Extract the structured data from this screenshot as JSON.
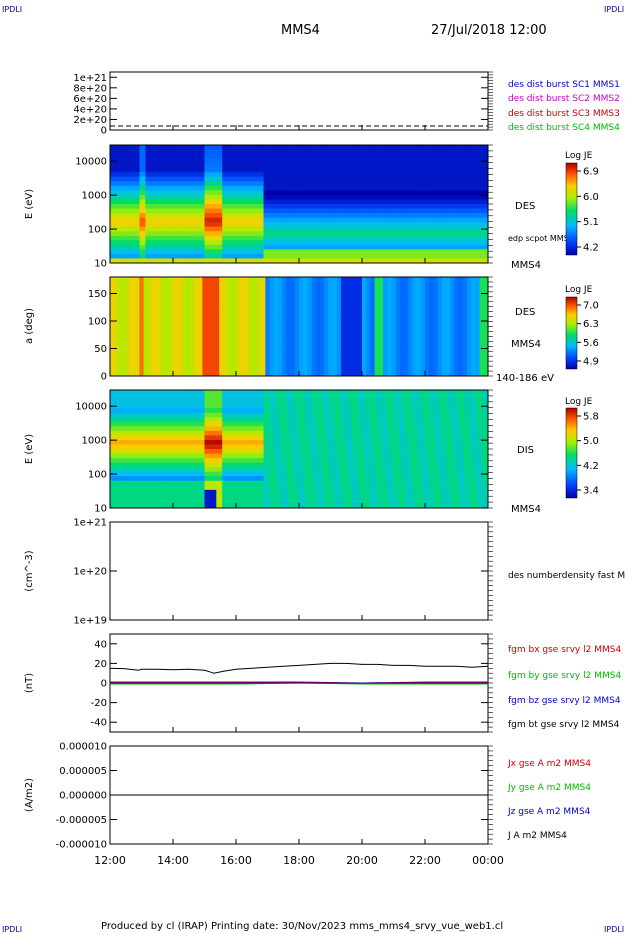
{
  "header": {
    "corner_tl": "IPDLI",
    "corner_tr": "IPDLI",
    "corner_bl": "IPDLI",
    "corner_br": "IPDLI",
    "title": "MMS4",
    "datetime": "27/Jul/2018 12:00"
  },
  "footer": {
    "produced": "Produced by cl (IRAP)   Printing date: 30/Nov/2023   mms_mms4_srvy_vue_web1.cl"
  },
  "colors": {
    "blue": "#0000cc",
    "magenta": "#cc00cc",
    "red": "#cc0000",
    "green": "#00bb00",
    "black": "#000000"
  },
  "chart_data": {
    "type": "multi-panel",
    "x_ticks": [
      "12:00",
      "14:00",
      "16:00",
      "18:00",
      "20:00",
      "22:00",
      "00:00"
    ],
    "panels": [
      {
        "id": "p1",
        "type": "line",
        "ylabel": "",
        "yticks": [
          "1e+21",
          "8e+20",
          "6e+20",
          "4e+20",
          "2e+20",
          "0"
        ],
        "yvals": [
          1e+21,
          8e+20,
          6e+20,
          4e+20,
          2e+20,
          0
        ],
        "ylim": [
          0,
          1.1e+21
        ],
        "legend": [
          {
            "label": "des dist burst SC1 MMS1",
            "color": "#0000cc"
          },
          {
            "label": "des dist burst SC2 MMS2",
            "color": "#cc00cc"
          },
          {
            "label": "des dist burst SC3 MMS3",
            "color": "#cc0000"
          },
          {
            "label": "des dist burst SC4 MMS4",
            "color": "#00bb00"
          }
        ]
      },
      {
        "id": "p2",
        "type": "heatmap",
        "ylabel": "E (eV)",
        "yticks": [
          "10000",
          "1000",
          "100",
          "10"
        ],
        "yvals": [
          10000,
          1000,
          100,
          10
        ],
        "yscale": "log",
        "ylim": [
          10,
          30000
        ],
        "right_labels": [
          "DES",
          "edp scpot MMS4",
          "MMS4"
        ],
        "colorbar": {
          "title": "Log JE",
          "ticks": [
            "6.9",
            "6.0",
            "5.1",
            "4.2"
          ],
          "range": [
            4.2,
            6.9
          ]
        }
      },
      {
        "id": "p3",
        "type": "heatmap",
        "ylabel": "a (deg)",
        "yticks": [
          "150",
          "100",
          "50",
          "0"
        ],
        "yvals": [
          150,
          100,
          50,
          0
        ],
        "ylim": [
          0,
          180
        ],
        "right_labels": [
          "DES",
          "MMS4",
          "140-186 eV"
        ],
        "colorbar": {
          "title": "Log JE",
          "ticks": [
            "7.0",
            "6.3",
            "5.6",
            "4.9"
          ],
          "range": [
            4.9,
            7.0
          ]
        }
      },
      {
        "id": "p4",
        "type": "heatmap",
        "ylabel": "E (eV)",
        "yticks": [
          "10000",
          "1000",
          "100",
          "10"
        ],
        "yvals": [
          10000,
          1000,
          100,
          10
        ],
        "yscale": "log",
        "ylim": [
          10,
          30000
        ],
        "right_labels": [
          "DIS",
          "MMS4"
        ],
        "colorbar": {
          "title": "Log JE",
          "ticks": [
            "5.8",
            "5.0",
            "4.2",
            "3.4"
          ],
          "range": [
            3.4,
            5.8
          ]
        }
      },
      {
        "id": "p5",
        "type": "line",
        "ylabel": "(cm^-3)",
        "yticks": [
          "1e+21",
          "1e+20",
          "1e+19"
        ],
        "yscale": "log",
        "right_labels": [
          "des numberdensity fast M"
        ]
      },
      {
        "id": "p6",
        "type": "line",
        "ylabel": "(nT)",
        "yticks": [
          "40",
          "20",
          "0",
          "-20",
          "-40"
        ],
        "yvals": [
          40,
          20,
          0,
          -20,
          -40
        ],
        "ylim": [
          -50,
          50
        ],
        "legend": [
          {
            "label": "fgm bx gse srvy l2 MMS4",
            "color": "#cc0000"
          },
          {
            "label": "fgm by gse srvy l2 MMS4",
            "color": "#00bb00"
          },
          {
            "label": "fgm bz gse srvy l2 MMS4",
            "color": "#0000cc"
          },
          {
            "label": "fgm bt gse srvy l2 MMS4",
            "color": "#000000"
          }
        ],
        "series": [
          {
            "name": "fgm bt gse srvy l2 MMS4",
            "x": [
              12.0,
              12.5,
              12.9,
              13.0,
              13.5,
              14.0,
              14.5,
              15.0,
              15.2,
              15.3,
              15.6,
              16.0,
              16.5,
              17.0,
              17.5,
              18.0,
              18.5,
              19.0,
              19.5,
              20.0,
              20.5,
              21.0,
              21.5,
              22.0,
              22.5,
              23.0,
              23.5,
              24.0
            ],
            "values": [
              15,
              14.5,
              13,
              14,
              14,
              13.5,
              14,
              13,
              11,
              10,
              12,
              14,
              15,
              16,
              17,
              18,
              19,
              20,
              20,
              19,
              19,
              18,
              18,
              17,
              17,
              17,
              16,
              17
            ]
          },
          {
            "name": "fgm bx gse srvy l2 MMS4",
            "x": [
              12,
              14,
              16,
              18,
              20,
              22,
              24
            ],
            "values": [
              1,
              1,
              1,
              1,
              0,
              1,
              1
            ]
          },
          {
            "name": "fgm by gse srvy l2 MMS4",
            "x": [
              12,
              14,
              16,
              18,
              20,
              22,
              24
            ],
            "values": [
              -1,
              -1,
              -1,
              0,
              -1,
              -1,
              -1
            ]
          },
          {
            "name": "fgm bz gse srvy l2 MMS4",
            "x": [
              12,
              14,
              16,
              18,
              20,
              22,
              24
            ],
            "values": [
              0,
              0,
              0,
              0,
              0,
              0,
              0
            ]
          }
        ]
      },
      {
        "id": "p7",
        "type": "line",
        "ylabel": "(A/m2)",
        "yticks": [
          "0.000010",
          "0.000005",
          "0.000000",
          "-0.000005",
          "-0.000010"
        ],
        "yvals": [
          1e-05,
          5e-06,
          0,
          -5e-06,
          -1e-05
        ],
        "ylim": [
          -1e-05,
          1e-05
        ],
        "legend": [
          {
            "label": "Jx gse A m2 MMS4",
            "color": "#cc0000"
          },
          {
            "label": "Jy gse A m2 MMS4",
            "color": "#00bb00"
          },
          {
            "label": "Jz gse A m2 MMS4",
            "color": "#0000cc"
          },
          {
            "label": "J A m2 MMS4",
            "color": "#000000"
          }
        ],
        "series": [
          {
            "name": "J A m2 MMS4",
            "x": [
              12,
              24
            ],
            "values": [
              0,
              0
            ]
          }
        ]
      }
    ]
  }
}
